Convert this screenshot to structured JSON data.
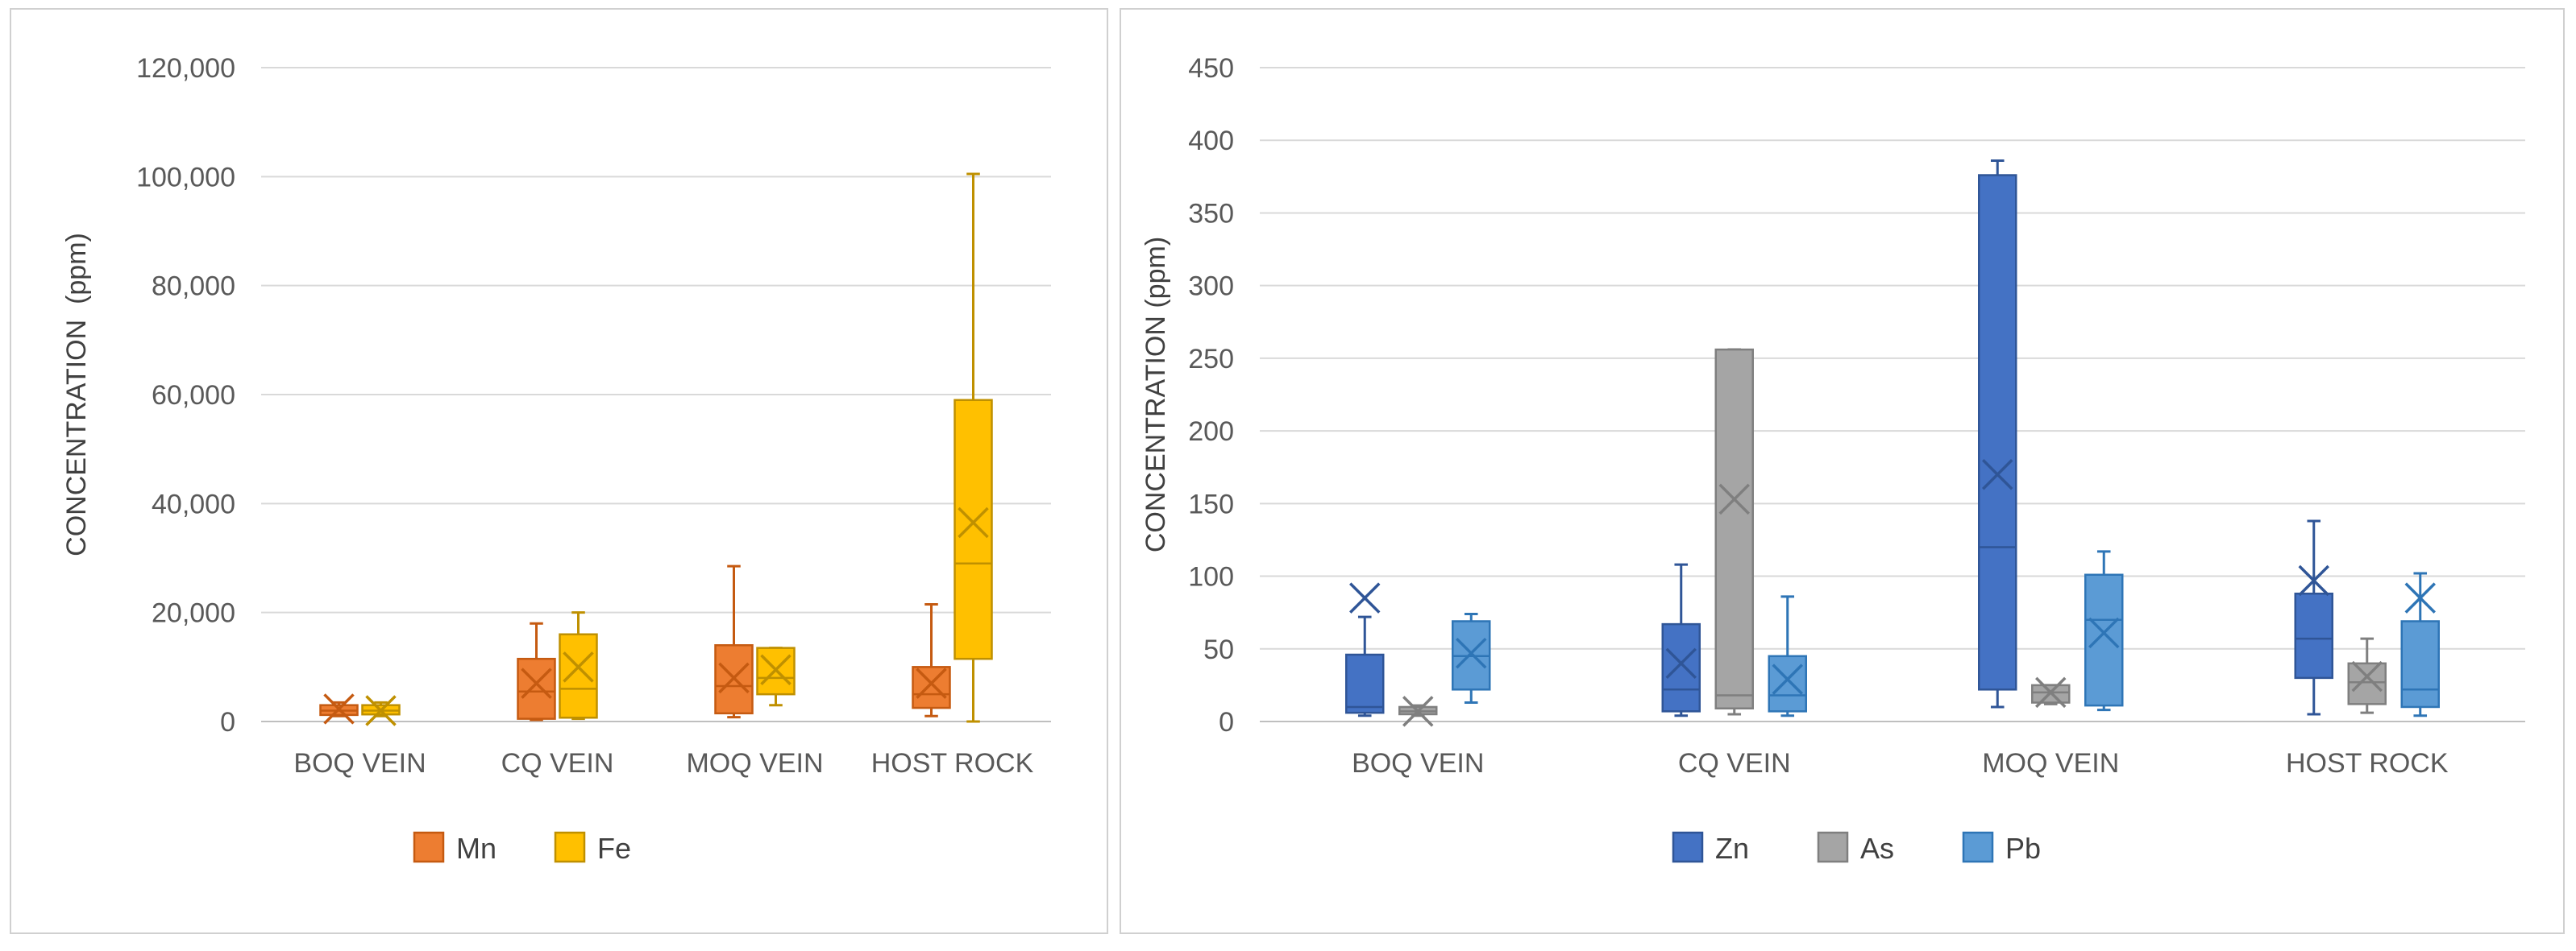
{
  "chart_data": [
    {
      "type": "box",
      "ylabel": "CONCENTRATION  (ppm)",
      "ylim": [
        0,
        120000
      ],
      "y_ticks": [
        "0",
        "20,000",
        "40,000",
        "60,000",
        "80,000",
        "100,000",
        "120,000"
      ],
      "y_tick_values": [
        0,
        20000,
        40000,
        60000,
        80000,
        100000,
        120000
      ],
      "categories": [
        "BOQ VEIN",
        "CQ VEIN",
        "MOQ VEIN",
        "HOST ROCK"
      ],
      "legend": [
        "Mn",
        "Fe"
      ],
      "series": [
        {
          "name": "Mn",
          "color": "#ed7d31",
          "stroke": "#c55a11",
          "boxes": [
            {
              "min": 1000,
              "q1": 1200,
              "median": 2000,
              "q3": 3000,
              "max": 3500,
              "mean": 2300
            },
            {
              "min": 300,
              "q1": 500,
              "median": 5500,
              "q3": 11500,
              "max": 18000,
              "mean": 7000
            },
            {
              "min": 800,
              "q1": 1500,
              "median": 6500,
              "q3": 14000,
              "max": 28500,
              "mean": 8000
            },
            {
              "min": 1000,
              "q1": 2500,
              "median": 5000,
              "q3": 10000,
              "max": 21500,
              "mean": 7000
            }
          ]
        },
        {
          "name": "Fe",
          "color": "#ffc000",
          "stroke": "#bf9000",
          "boxes": [
            {
              "min": 1000,
              "q1": 1300,
              "median": 2000,
              "q3": 3000,
              "max": 3500,
              "mean": 2000
            },
            {
              "min": 500,
              "q1": 700,
              "median": 6000,
              "q3": 16000,
              "max": 20000,
              "mean": 10000
            },
            {
              "min": 3000,
              "q1": 5000,
              "median": 8000,
              "q3": 13500,
              "max": 13500,
              "mean": 9500
            },
            {
              "min": 0,
              "q1": 11500,
              "median": 29000,
              "q3": 59000,
              "max": 100500,
              "mean": 36500
            }
          ]
        }
      ]
    },
    {
      "type": "box",
      "ylabel": "CONCENTRATION (ppm)",
      "ylim": [
        0,
        450
      ],
      "y_ticks": [
        "0",
        "50",
        "100",
        "150",
        "200",
        "250",
        "300",
        "350",
        "400",
        "450"
      ],
      "y_tick_values": [
        0,
        50,
        100,
        150,
        200,
        250,
        300,
        350,
        400,
        450
      ],
      "categories": [
        "BOQ VEIN",
        "CQ VEIN",
        "MOQ VEIN",
        "HOST ROCK"
      ],
      "legend": [
        "Zn",
        "As",
        "Pb"
      ],
      "series": [
        {
          "name": "Zn",
          "color": "#4472c4",
          "stroke": "#2f5597",
          "boxes": [
            {
              "min": 4,
              "q1": 6,
              "median": 10,
              "q3": 46,
              "max": 72,
              "mean": 85
            },
            {
              "min": 4,
              "q1": 7,
              "median": 22,
              "q3": 67,
              "max": 108,
              "mean": 40
            },
            {
              "min": 10,
              "q1": 22,
              "median": 120,
              "q3": 376,
              "max": 386,
              "mean": 170
            },
            {
              "min": 5,
              "q1": 30,
              "median": 57,
              "q3": 88,
              "max": 138,
              "mean": 97
            }
          ]
        },
        {
          "name": "As",
          "color": "#a5a5a5",
          "stroke": "#7f7f7f",
          "boxes": [
            {
              "min": 4,
              "q1": 5,
              "median": 7,
              "q3": 10,
              "max": 11,
              "mean": 7
            },
            {
              "min": 5,
              "q1": 9,
              "median": 18,
              "q3": 256,
              "max": 256,
              "mean": 153
            },
            {
              "min": 12,
              "q1": 13,
              "median": 20,
              "q3": 25,
              "max": 25,
              "mean": 20
            },
            {
              "min": 6,
              "q1": 12,
              "median": 27,
              "q3": 40,
              "max": 57,
              "mean": 31
            }
          ]
        },
        {
          "name": "Pb",
          "color": "#5b9bd5",
          "stroke": "#2e75b6",
          "boxes": [
            {
              "min": 13,
              "q1": 22,
              "median": 45,
              "q3": 69,
              "max": 74,
              "mean": 47
            },
            {
              "min": 4,
              "q1": 7,
              "median": 18,
              "q3": 45,
              "max": 86,
              "mean": 29
            },
            {
              "min": 8,
              "q1": 11,
              "median": 70,
              "q3": 101,
              "max": 117,
              "mean": 61
            },
            {
              "min": 4,
              "q1": 10,
              "median": 22,
              "q3": 69,
              "max": 102,
              "mean": 85
            }
          ]
        }
      ]
    }
  ]
}
